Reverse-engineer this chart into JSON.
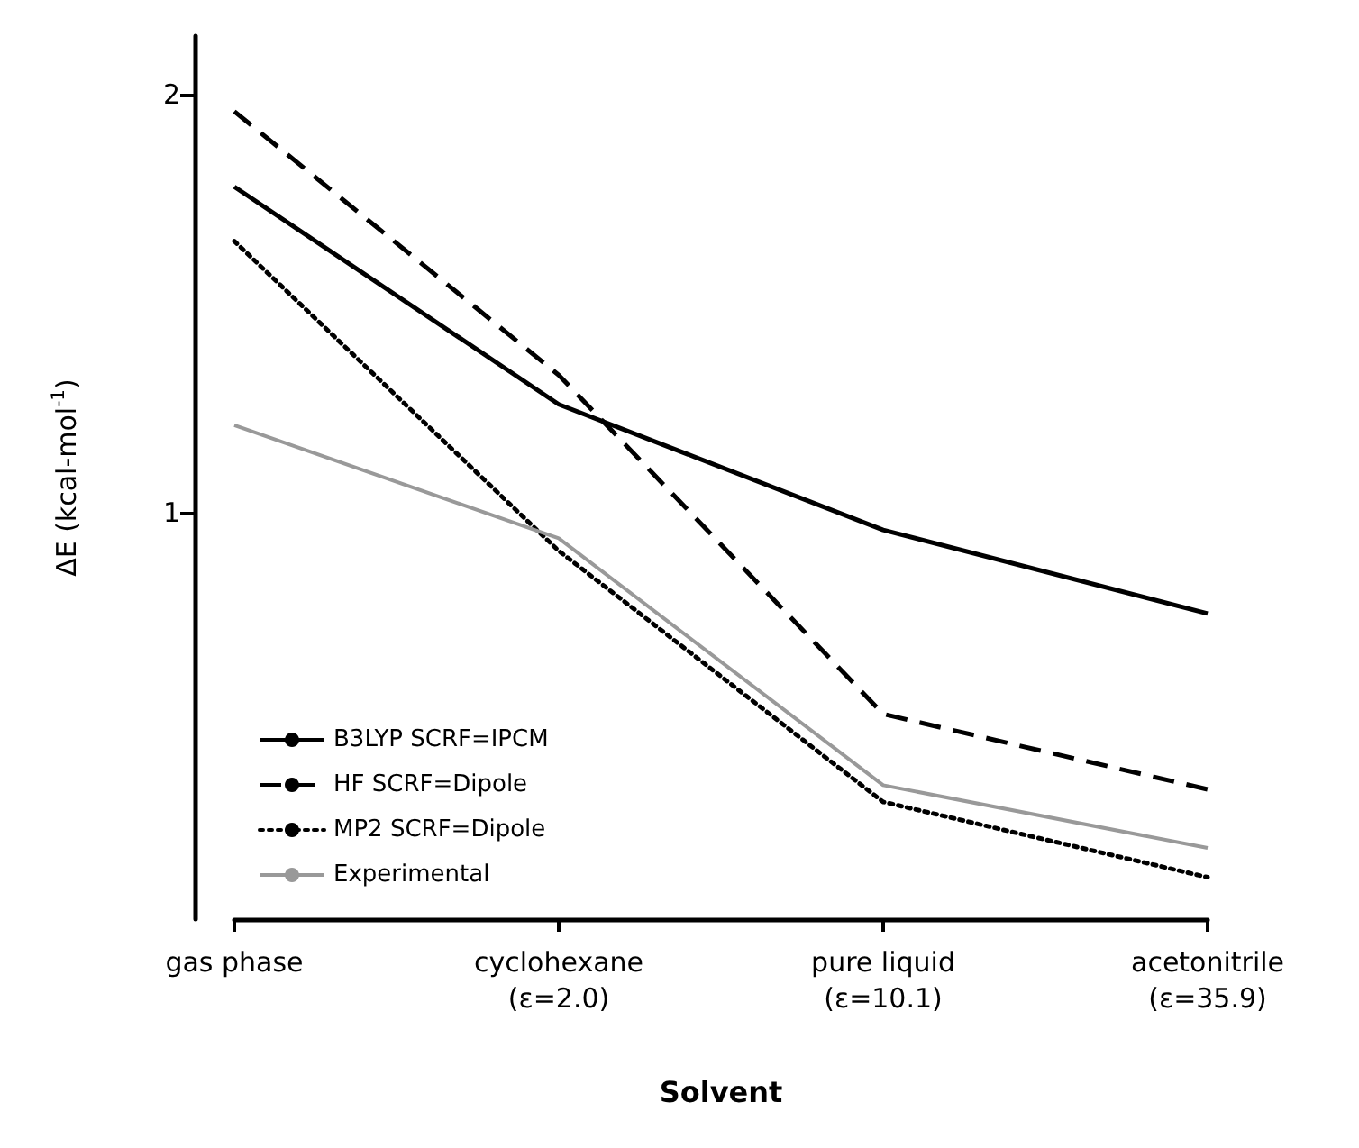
{
  "chart_data": {
    "type": "line",
    "xlabel": "Solvent",
    "ylabel": "ΔE (kcal-mol$^{-1}$)",
    "categories": [
      "gas phase",
      "cyclohexane\n(ε=2.0)",
      "pure liquid\n(ε=10.1)",
      "acetonitrile\n(ε=35.9)"
    ],
    "ylim": [
      0.03,
      2.14
    ],
    "yticks": [
      1,
      2
    ],
    "grid": false,
    "legend": "bottom left",
    "marker": "none",
    "series": [
      {
        "name": "B3LYP SCRF=IPCM",
        "color": "#000000",
        "line_style": "solid",
        "values": [
          1.78,
          1.26,
          0.96,
          0.76
        ]
      },
      {
        "name": "HF SCRF=Dipole",
        "color": "#000000",
        "line_style": "dashed",
        "values": [
          1.96,
          1.33,
          0.52,
          0.34
        ]
      },
      {
        "name": "MP2 SCRF=Dipole",
        "color": "#000000",
        "line_style": "dotted",
        "values": [
          1.65,
          0.91,
          0.31,
          0.13
        ]
      },
      {
        "name": "Experimental",
        "color": "#999999",
        "line_style": "solid",
        "values": [
          1.21,
          0.94,
          0.35,
          0.2
        ]
      }
    ]
  }
}
